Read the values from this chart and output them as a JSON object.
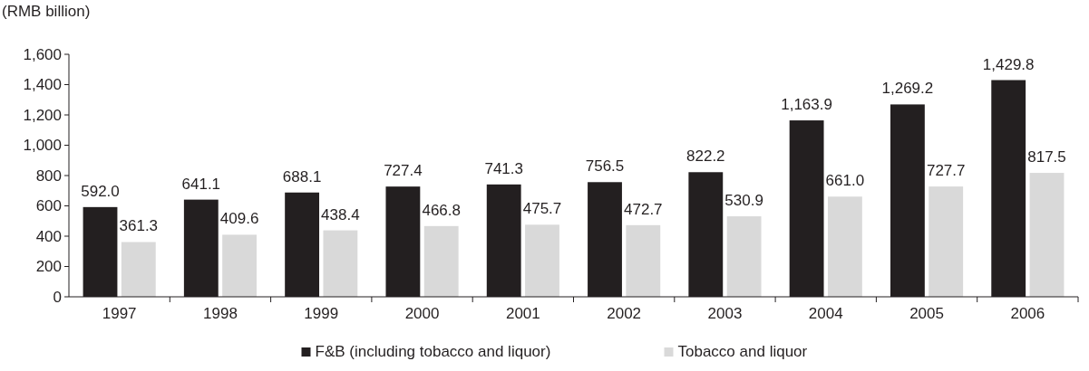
{
  "chart_data": {
    "type": "bar",
    "ylabel": "(RMB billion)",
    "categories": [
      "1997",
      "1998",
      "1999",
      "2000",
      "2001",
      "2002",
      "2003",
      "2004",
      "2005",
      "2006"
    ],
    "series": [
      {
        "name": "F&B (including tobacco and liquor)",
        "color": "#231f20",
        "values": [
          592.0,
          641.1,
          688.1,
          727.4,
          741.3,
          756.5,
          822.2,
          1163.9,
          1269.2,
          1429.8
        ],
        "value_labels": [
          "592.0",
          "641.1",
          "688.1",
          "727.4",
          "741.3",
          "756.5",
          "822.2",
          "1,163.9",
          "1,269.2",
          "1,429.8"
        ]
      },
      {
        "name": "Tobacco and liquor",
        "color": "#d9d9d9",
        "values": [
          361.3,
          409.6,
          438.4,
          466.8,
          475.7,
          472.7,
          530.9,
          661.0,
          727.7,
          817.5
        ],
        "value_labels": [
          "361.3",
          "409.6",
          "438.4",
          "466.8",
          "475.7",
          "472.7",
          "530.9",
          "661.0",
          "727.7",
          "817.5"
        ]
      }
    ],
    "ylim": [
      0,
      1600
    ],
    "yticks": [
      0,
      200,
      400,
      600,
      800,
      {
        "value": 1000,
        "label": "1,000"
      },
      {
        "value": 1200,
        "label": "1,200"
      },
      {
        "value": 1400,
        "label": "1,400"
      },
      {
        "value": 1600,
        "label": "1,600"
      }
    ],
    "legend": "bottom",
    "grid": false
  }
}
